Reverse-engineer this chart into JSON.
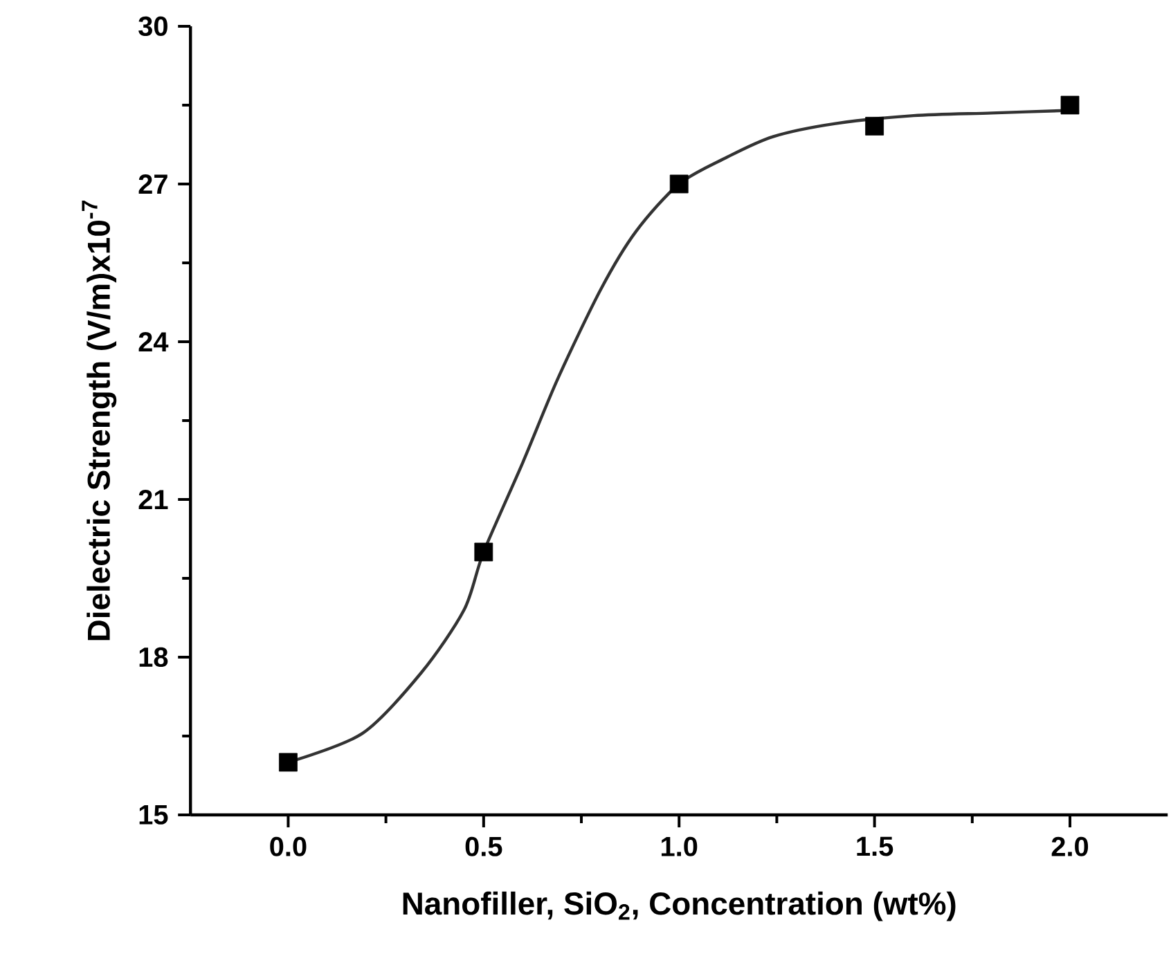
{
  "chart_data": {
    "type": "scatter",
    "xlabel": "Nanofiller, SiO$_{2}$, Concentration (wt%)",
    "ylabel": "Dielectric Strength (V/m)x10$^{-7}$",
    "xlim": [
      -0.25,
      2.25
    ],
    "ylim": [
      15,
      30
    ],
    "xticks": [
      {
        "value": 0,
        "label": "0.0"
      },
      {
        "value": 0.5,
        "label": "0.5"
      },
      {
        "value": 1,
        "label": "1.0"
      },
      {
        "value": 1.5,
        "label": "1.5"
      },
      {
        "value": 2,
        "label": "2.0"
      }
    ],
    "yticks": [
      15,
      18,
      21,
      24,
      27,
      30
    ],
    "grid": false,
    "series": [
      {
        "type": "line",
        "color": "#333333",
        "marker": "none",
        "line_style": "solid",
        "x": [
          0,
          0.19,
          0.34,
          0.45,
          0.5,
          0.6,
          0.69,
          0.8,
          0.89,
          1.0,
          1.12,
          1.24,
          1.4,
          1.6,
          1.8,
          2.0
        ],
        "values": [
          16.0,
          16.55,
          17.7,
          18.9,
          20.0,
          21.7,
          23.3,
          25.0,
          26.1,
          27.0,
          27.5,
          27.9,
          28.15,
          28.3,
          28.35,
          28.4
        ]
      },
      {
        "color": "#000000",
        "marker": "square",
        "x": [
          0,
          0.5,
          1.0,
          1.5,
          2.0
        ],
        "values": [
          16.0,
          20.0,
          27.0,
          28.1,
          28.5
        ]
      }
    ]
  }
}
